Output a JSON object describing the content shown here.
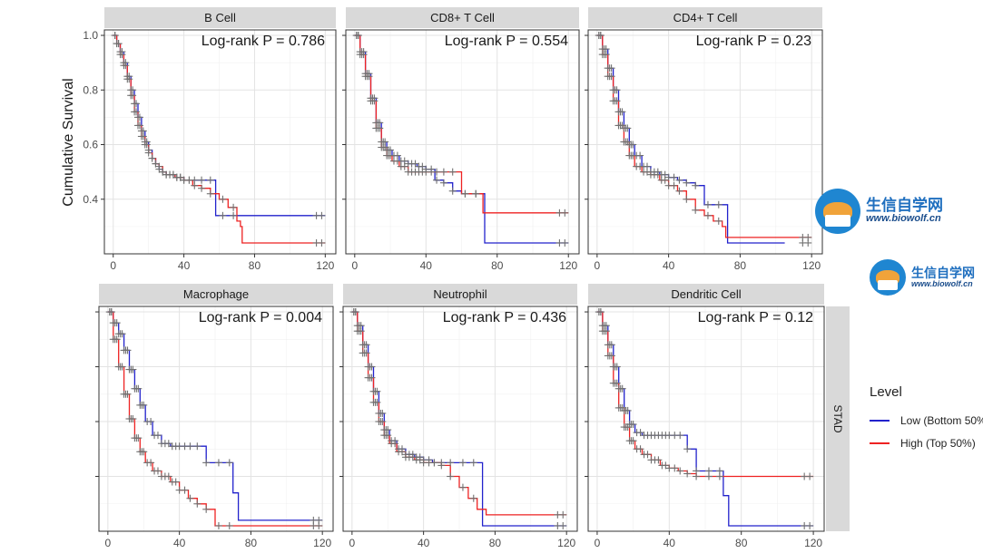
{
  "chart_data": {
    "type": "line",
    "ylabel": "Cumulative Survival",
    "strip_label": "STAD",
    "x_ticks": [
      0,
      40,
      80,
      120
    ],
    "y_ticks": [
      0.4,
      0.6,
      0.8,
      1.0
    ],
    "y_tick_labels": [
      "0.4",
      "0.6",
      "0.8",
      "1.0"
    ],
    "xlim": [
      -5,
      126
    ],
    "ylim": [
      0.2,
      1.02
    ],
    "grid": true,
    "legend": {
      "title": "Level",
      "position": "right",
      "entries": [
        {
          "label": "Low (Bottom 50%)",
          "color": "#2222cc"
        },
        {
          "label": "High (Top 50%)",
          "color": "#ee2222"
        }
      ]
    },
    "panels": [
      {
        "title": "B Cell",
        "annotation": "Log-rank P = 0.786",
        "series": [
          {
            "name": "Low (Bottom 50%)",
            "x": [
              0,
              2,
              4,
              6,
              8,
              10,
              12,
              14,
              16,
              18,
              20,
              22,
              24,
              26,
              28,
              30,
              35,
              40,
              45,
              50,
              56,
              58,
              65,
              70,
              80,
              90,
              100,
              110,
              120
            ],
            "y": [
              1.0,
              0.97,
              0.94,
              0.9,
              0.85,
              0.8,
              0.75,
              0.7,
              0.65,
              0.61,
              0.58,
              0.55,
              0.53,
              0.51,
              0.5,
              0.49,
              0.48,
              0.47,
              0.47,
              0.47,
              0.47,
              0.34,
              0.34,
              0.34,
              0.34,
              0.34,
              0.34,
              0.34,
              0.34
            ]
          },
          {
            "name": "High (Top 50%)",
            "x": [
              0,
              2,
              4,
              6,
              8,
              10,
              12,
              14,
              16,
              18,
              20,
              22,
              24,
              26,
              28,
              30,
              35,
              40,
              45,
              50,
              55,
              60,
              65,
              70,
              72,
              73,
              80,
              90,
              100,
              110,
              120
            ],
            "y": [
              1.0,
              0.97,
              0.93,
              0.89,
              0.84,
              0.78,
              0.72,
              0.67,
              0.63,
              0.6,
              0.57,
              0.55,
              0.53,
              0.52,
              0.5,
              0.49,
              0.48,
              0.47,
              0.45,
              0.44,
              0.42,
              0.4,
              0.37,
              0.32,
              0.3,
              0.24,
              0.24,
              0.24,
              0.24,
              0.24,
              0.24
            ]
          }
        ],
        "censor_x": [
          1,
          2,
          3,
          4,
          5,
          6,
          7,
          8,
          9,
          10,
          11,
          12,
          13,
          14,
          15,
          16,
          17,
          18,
          19,
          20,
          22,
          24,
          26,
          28,
          30,
          32,
          34,
          36,
          38,
          40,
          43,
          46,
          50,
          55,
          62,
          68,
          115,
          118
        ]
      },
      {
        "title": "CD8+ T Cell",
        "annotation": "Log-rank P = 0.554",
        "series": [
          {
            "name": "Low (Bottom 50%)",
            "x": [
              0,
              3,
              6,
              9,
              12,
              15,
              18,
              21,
              25,
              30,
              35,
              40,
              45,
              50,
              55,
              60,
              65,
              70,
              73,
              80,
              90,
              100,
              110,
              120
            ],
            "y": [
              1.0,
              0.94,
              0.86,
              0.77,
              0.68,
              0.61,
              0.58,
              0.56,
              0.54,
              0.53,
              0.52,
              0.51,
              0.47,
              0.46,
              0.43,
              0.42,
              0.42,
              0.42,
              0.24,
              0.24,
              0.24,
              0.24,
              0.24,
              0.24
            ]
          },
          {
            "name": "High (Top 50%)",
            "x": [
              0,
              3,
              6,
              9,
              12,
              15,
              18,
              21,
              25,
              30,
              35,
              40,
              45,
              50,
              55,
              60,
              65,
              70,
              72,
              80,
              90,
              100,
              110,
              120
            ],
            "y": [
              1.0,
              0.93,
              0.85,
              0.76,
              0.66,
              0.59,
              0.56,
              0.54,
              0.52,
              0.5,
              0.5,
              0.5,
              0.5,
              0.5,
              0.5,
              0.42,
              0.42,
              0.42,
              0.35,
              0.35,
              0.35,
              0.35,
              0.35,
              0.35
            ]
          }
        ],
        "censor_x": [
          1,
          2,
          3,
          4,
          5,
          6,
          7,
          8,
          9,
          10,
          11,
          12,
          13,
          14,
          15,
          16,
          17,
          18,
          19,
          20,
          22,
          24,
          26,
          28,
          30,
          32,
          34,
          36,
          38,
          40,
          43,
          46,
          50,
          55,
          62,
          68,
          115,
          118
        ]
      },
      {
        "title": "CD4+ T Cell",
        "annotation": "Log-rank P = 0.23",
        "series": [
          {
            "name": "Low (Bottom 50%)",
            "x": [
              0,
              3,
              6,
              9,
              12,
              15,
              18,
              21,
              25,
              30,
              35,
              40,
              45,
              50,
              55,
              60,
              65,
              70,
              73,
              80,
              90,
              100,
              105
            ],
            "y": [
              1.0,
              0.95,
              0.88,
              0.8,
              0.72,
              0.66,
              0.6,
              0.56,
              0.52,
              0.5,
              0.49,
              0.48,
              0.47,
              0.46,
              0.45,
              0.38,
              0.38,
              0.38,
              0.24,
              0.24,
              0.24,
              0.24,
              0.24
            ]
          },
          {
            "name": "High (Top 50%)",
            "x": [
              0,
              3,
              6,
              9,
              12,
              15,
              18,
              21,
              25,
              30,
              35,
              40,
              45,
              50,
              55,
              60,
              65,
              70,
              72,
              80,
              90,
              100,
              110,
              120
            ],
            "y": [
              1.0,
              0.93,
              0.85,
              0.76,
              0.67,
              0.61,
              0.56,
              0.52,
              0.5,
              0.49,
              0.47,
              0.45,
              0.43,
              0.4,
              0.36,
              0.34,
              0.32,
              0.3,
              0.26,
              0.26,
              0.26,
              0.26,
              0.26,
              0.26
            ]
          }
        ],
        "censor_x": [
          1,
          2,
          3,
          4,
          5,
          6,
          7,
          8,
          9,
          10,
          11,
          12,
          13,
          14,
          15,
          16,
          17,
          18,
          19,
          20,
          22,
          24,
          26,
          28,
          30,
          32,
          34,
          36,
          38,
          40,
          43,
          46,
          50,
          55,
          62,
          68,
          115,
          118
        ]
      },
      {
        "title": "Macrophage",
        "annotation": "Log-rank P = 0.004",
        "series": [
          {
            "name": "Low (Bottom 50%)",
            "x": [
              0,
              3,
              6,
              9,
              12,
              15,
              18,
              21,
              25,
              30,
              35,
              40,
              45,
              50,
              55,
              60,
              65,
              70,
              73,
              80,
              90,
              100,
              110,
              120
            ],
            "y": [
              1.0,
              0.96,
              0.92,
              0.86,
              0.79,
              0.72,
              0.66,
              0.6,
              0.55,
              0.52,
              0.51,
              0.51,
              0.51,
              0.51,
              0.45,
              0.45,
              0.45,
              0.34,
              0.24,
              0.24,
              0.24,
              0.24,
              0.24,
              0.24
            ]
          },
          {
            "name": "High (Top 50%)",
            "x": [
              0,
              3,
              6,
              9,
              12,
              15,
              18,
              21,
              25,
              30,
              35,
              40,
              45,
              50,
              55,
              60,
              65,
              70,
              75,
              80,
              90,
              100,
              110,
              120
            ],
            "y": [
              1.0,
              0.9,
              0.8,
              0.7,
              0.61,
              0.54,
              0.49,
              0.45,
              0.42,
              0.4,
              0.38,
              0.35,
              0.32,
              0.3,
              0.28,
              0.22,
              0.22,
              0.22,
              0.22,
              0.22,
              0.22,
              0.22,
              0.22,
              0.22
            ]
          }
        ],
        "censor_x": [
          1,
          2,
          3,
          4,
          5,
          6,
          7,
          8,
          9,
          10,
          11,
          12,
          13,
          14,
          15,
          16,
          17,
          18,
          19,
          20,
          22,
          24,
          26,
          28,
          30,
          32,
          34,
          36,
          38,
          40,
          43,
          46,
          50,
          55,
          62,
          68,
          115,
          118
        ]
      },
      {
        "title": "Neutrophil",
        "annotation": "Log-rank P = 0.436",
        "series": [
          {
            "name": "Low (Bottom 50%)",
            "x": [
              0,
              3,
              6,
              9,
              12,
              15,
              18,
              21,
              25,
              30,
              35,
              40,
              45,
              50,
              55,
              60,
              65,
              70,
              73,
              80,
              90,
              100,
              110,
              120
            ],
            "y": [
              1.0,
              0.95,
              0.88,
              0.8,
              0.71,
              0.63,
              0.57,
              0.53,
              0.5,
              0.48,
              0.47,
              0.46,
              0.45,
              0.45,
              0.45,
              0.45,
              0.45,
              0.45,
              0.22,
              0.22,
              0.22,
              0.22,
              0.22,
              0.22
            ]
          },
          {
            "name": "High (Top 50%)",
            "x": [
              0,
              3,
              6,
              9,
              12,
              15,
              18,
              21,
              25,
              30,
              35,
              40,
              45,
              50,
              55,
              60,
              65,
              70,
              75,
              80,
              90,
              100,
              110,
              120
            ],
            "y": [
              1.0,
              0.93,
              0.85,
              0.76,
              0.67,
              0.6,
              0.55,
              0.52,
              0.49,
              0.47,
              0.46,
              0.45,
              0.45,
              0.44,
              0.4,
              0.36,
              0.32,
              0.28,
              0.26,
              0.26,
              0.26,
              0.26,
              0.26,
              0.26
            ]
          }
        ],
        "censor_x": [
          1,
          2,
          3,
          4,
          5,
          6,
          7,
          8,
          9,
          10,
          11,
          12,
          13,
          14,
          15,
          16,
          17,
          18,
          19,
          20,
          22,
          24,
          26,
          28,
          30,
          32,
          34,
          36,
          38,
          40,
          43,
          46,
          50,
          55,
          62,
          68,
          115,
          118
        ]
      },
      {
        "title": "Dendritic Cell",
        "annotation": "Log-rank P = 0.12",
        "series": [
          {
            "name": "Low (Bottom 50%)",
            "x": [
              0,
              3,
              6,
              9,
              12,
              15,
              18,
              21,
              25,
              30,
              35,
              40,
              45,
              50,
              55,
              60,
              65,
              70,
              73,
              80,
              90,
              100,
              110,
              120
            ],
            "y": [
              1.0,
              0.95,
              0.88,
              0.8,
              0.72,
              0.64,
              0.59,
              0.56,
              0.55,
              0.55,
              0.55,
              0.55,
              0.55,
              0.5,
              0.42,
              0.42,
              0.42,
              0.33,
              0.22,
              0.22,
              0.22,
              0.22,
              0.22,
              0.22
            ]
          },
          {
            "name": "High (Top 50%)",
            "x": [
              0,
              3,
              6,
              9,
              12,
              15,
              18,
              21,
              25,
              30,
              35,
              40,
              45,
              50,
              55,
              60,
              65,
              70,
              75,
              80,
              90,
              100,
              110,
              120
            ],
            "y": [
              1.0,
              0.93,
              0.84,
              0.74,
              0.65,
              0.58,
              0.53,
              0.5,
              0.48,
              0.46,
              0.44,
              0.43,
              0.42,
              0.41,
              0.4,
              0.4,
              0.4,
              0.4,
              0.4,
              0.4,
              0.4,
              0.4,
              0.4,
              0.4
            ]
          }
        ],
        "censor_x": [
          1,
          2,
          3,
          4,
          5,
          6,
          7,
          8,
          9,
          10,
          11,
          12,
          13,
          14,
          15,
          16,
          17,
          18,
          19,
          20,
          22,
          24,
          26,
          28,
          30,
          32,
          34,
          36,
          38,
          40,
          43,
          46,
          50,
          55,
          62,
          68,
          115,
          118
        ]
      }
    ]
  },
  "watermark": {
    "name_cn": "生信自学网",
    "url": "www.biowolf.cn"
  }
}
